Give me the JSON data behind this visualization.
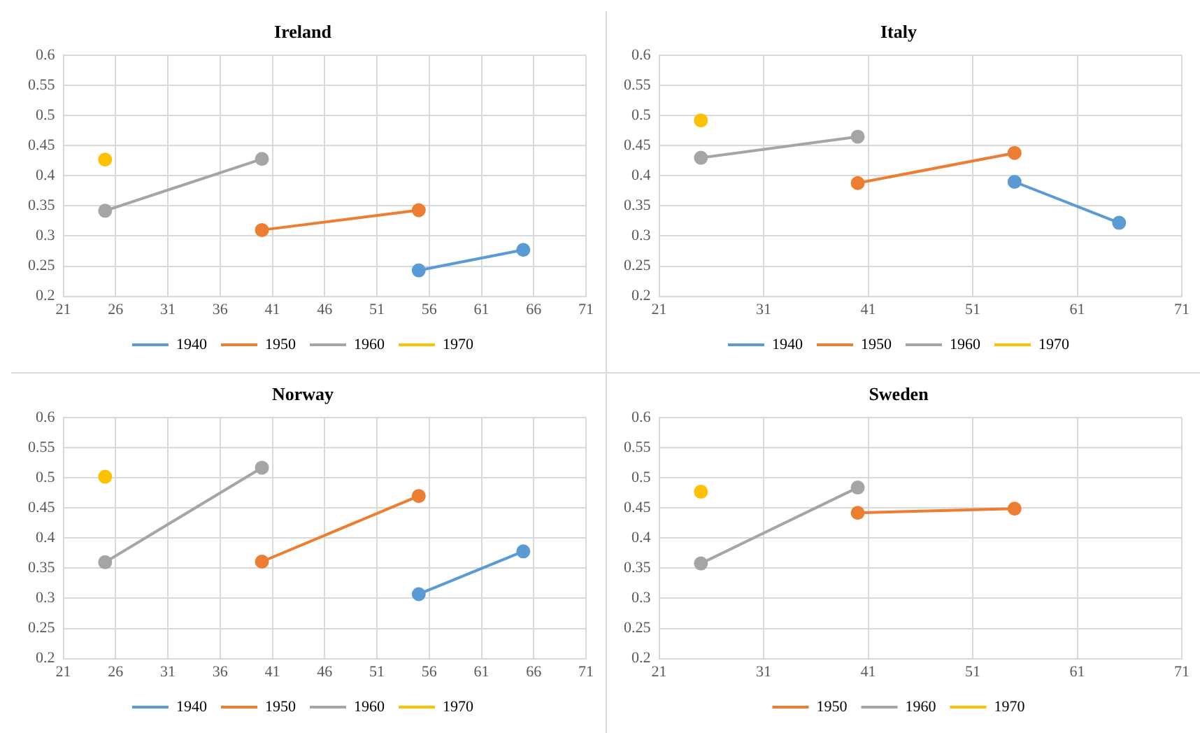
{
  "chart_data": [
    {
      "type": "line",
      "title": "Ireland",
      "xlim": [
        21,
        71
      ],
      "xticks": [
        21,
        26,
        31,
        36,
        41,
        46,
        51,
        56,
        61,
        66,
        71
      ],
      "ylim": [
        0.2,
        0.6
      ],
      "yticks": [
        0.2,
        0.25,
        0.3,
        0.35,
        0.4,
        0.45,
        0.5,
        0.55,
        0.6
      ],
      "grid": true,
      "legend": "bottom",
      "marker": "circle",
      "series": [
        {
          "name": "1940",
          "color": "#5b9bd5",
          "x": [
            55,
            65
          ],
          "values": [
            0.243,
            0.277
          ]
        },
        {
          "name": "1950",
          "color": "#ed7d31",
          "x": [
            40,
            55
          ],
          "values": [
            0.31,
            0.343
          ]
        },
        {
          "name": "1960",
          "color": "#a5a5a5",
          "x": [
            25,
            40
          ],
          "values": [
            0.342,
            0.428
          ]
        },
        {
          "name": "1970",
          "color": "#ffc000",
          "x": [
            25
          ],
          "values": [
            0.427
          ]
        }
      ]
    },
    {
      "type": "line",
      "title": "Italy",
      "xlim": [
        21,
        71
      ],
      "xticks": [
        21,
        31,
        41,
        51,
        61,
        71
      ],
      "ylim": [
        0.2,
        0.6
      ],
      "yticks": [
        0.2,
        0.25,
        0.3,
        0.35,
        0.4,
        0.45,
        0.5,
        0.55,
        0.6
      ],
      "grid": true,
      "legend": "bottom",
      "marker": "circle",
      "series": [
        {
          "name": "1940",
          "color": "#5b9bd5",
          "x": [
            55,
            65
          ],
          "values": [
            0.39,
            0.322
          ]
        },
        {
          "name": "1950",
          "color": "#ed7d31",
          "x": [
            40,
            55
          ],
          "values": [
            0.388,
            0.438
          ]
        },
        {
          "name": "1960",
          "color": "#a5a5a5",
          "x": [
            25,
            40
          ],
          "values": [
            0.43,
            0.465
          ]
        },
        {
          "name": "1970",
          "color": "#ffc000",
          "x": [
            25
          ],
          "values": [
            0.492
          ]
        }
      ]
    },
    {
      "type": "line",
      "title": "Norway",
      "xlim": [
        21,
        71
      ],
      "xticks": [
        21,
        26,
        31,
        36,
        41,
        46,
        51,
        56,
        61,
        66,
        71
      ],
      "ylim": [
        0.2,
        0.6
      ],
      "yticks": [
        0.2,
        0.25,
        0.3,
        0.35,
        0.4,
        0.45,
        0.5,
        0.55,
        0.6
      ],
      "grid": true,
      "legend": "bottom",
      "marker": "circle",
      "series": [
        {
          "name": "1940",
          "color": "#5b9bd5",
          "x": [
            55,
            65
          ],
          "values": [
            0.307,
            0.378
          ]
        },
        {
          "name": "1950",
          "color": "#ed7d31",
          "x": [
            40,
            55
          ],
          "values": [
            0.361,
            0.47
          ]
        },
        {
          "name": "1960",
          "color": "#a5a5a5",
          "x": [
            25,
            40
          ],
          "values": [
            0.36,
            0.517
          ]
        },
        {
          "name": "1970",
          "color": "#ffc000",
          "x": [
            25
          ],
          "values": [
            0.502
          ]
        }
      ]
    },
    {
      "type": "line",
      "title": "Sweden",
      "xlim": [
        21,
        71
      ],
      "xticks": [
        21,
        31,
        41,
        51,
        61,
        71
      ],
      "ylim": [
        0.2,
        0.6
      ],
      "yticks": [
        0.2,
        0.25,
        0.3,
        0.35,
        0.4,
        0.45,
        0.5,
        0.55,
        0.6
      ],
      "grid": true,
      "legend": "bottom",
      "marker": "circle",
      "series": [
        {
          "name": "1950",
          "color": "#ed7d31",
          "x": [
            40,
            55
          ],
          "values": [
            0.442,
            0.449
          ]
        },
        {
          "name": "1960",
          "color": "#a5a5a5",
          "x": [
            25,
            40
          ],
          "values": [
            0.358,
            0.484
          ]
        },
        {
          "name": "1970",
          "color": "#ffc000",
          "x": [
            25
          ],
          "values": [
            0.477
          ]
        }
      ]
    }
  ]
}
